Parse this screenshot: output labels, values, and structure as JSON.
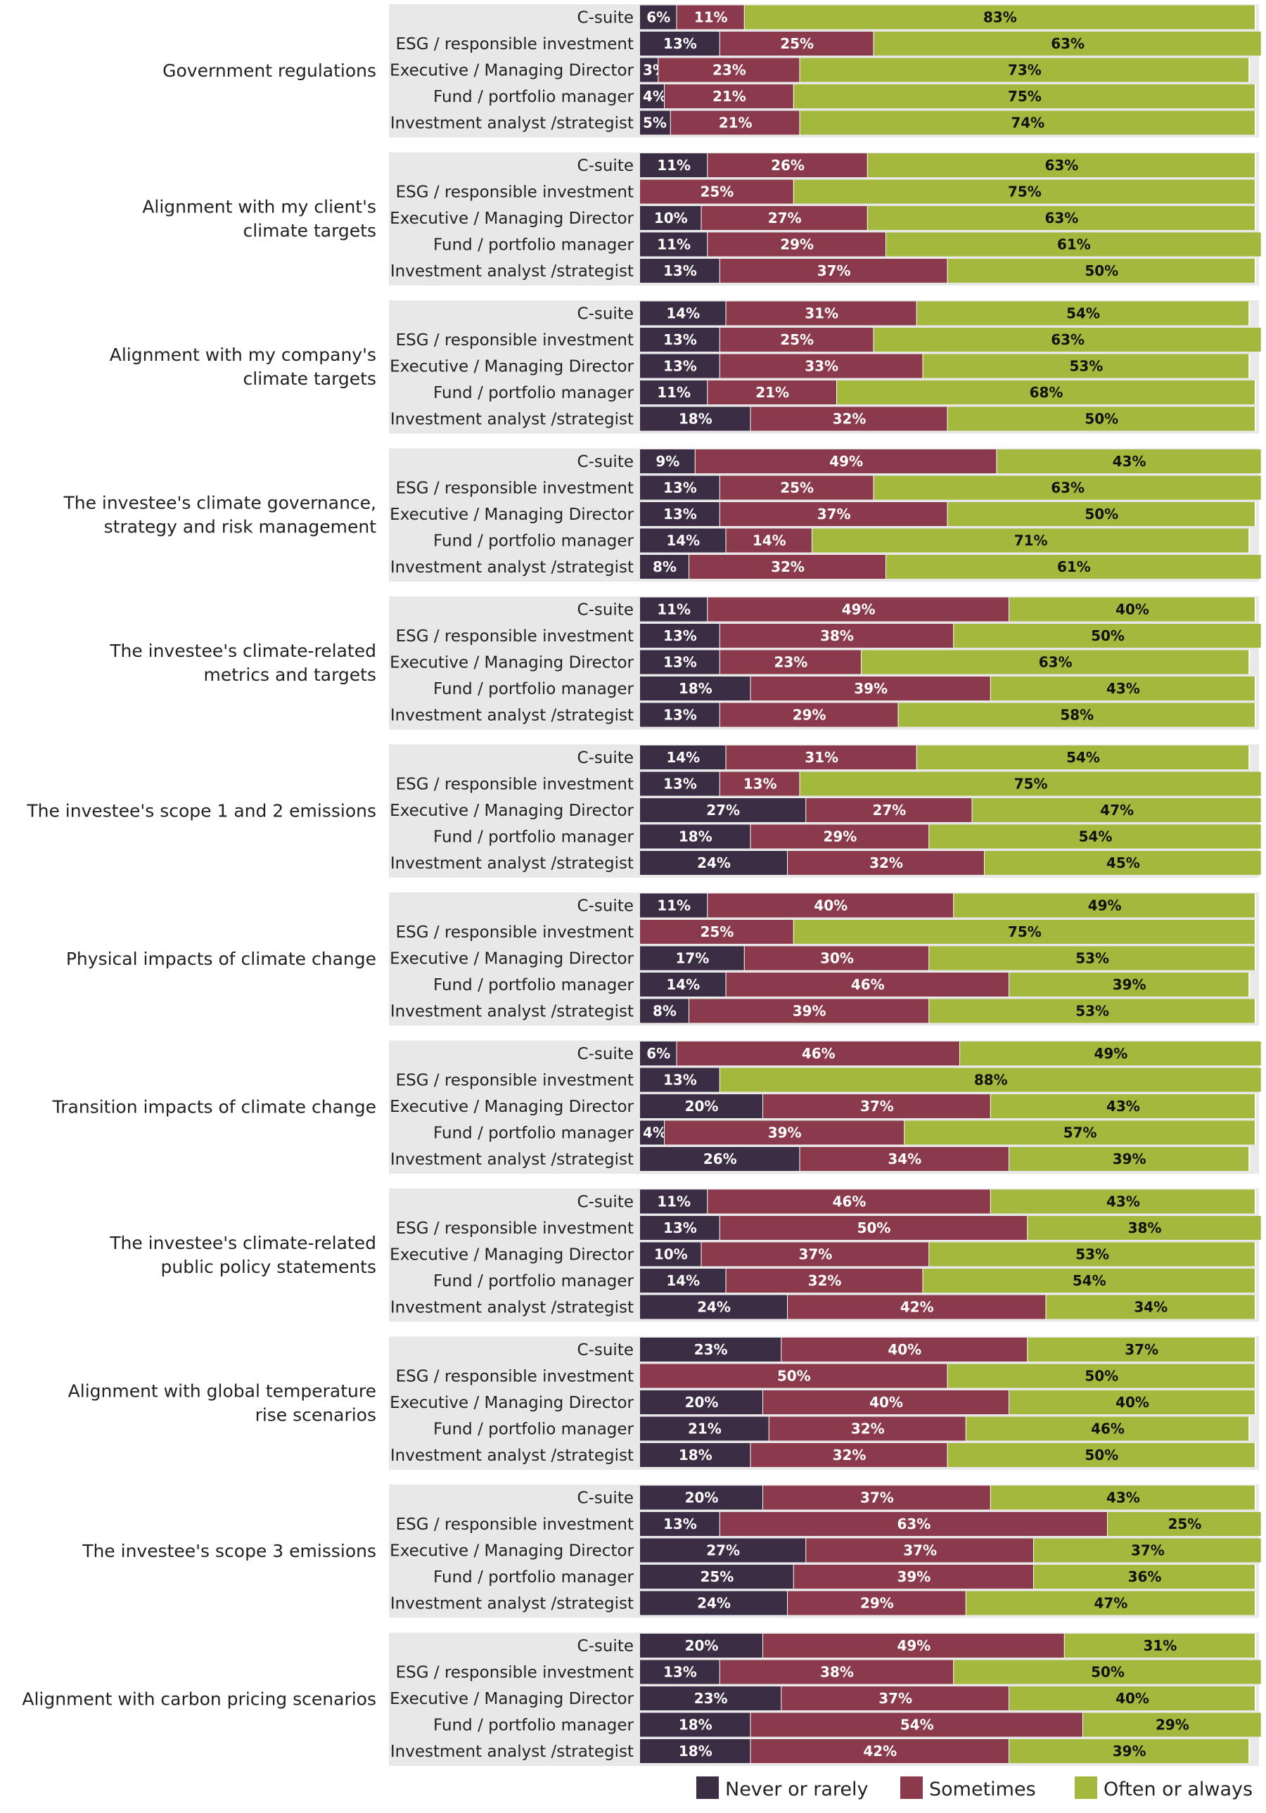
{
  "chart_data": {
    "type": "bar",
    "orientation": "horizontal",
    "stacked": true,
    "percent_scale": [
      0,
      100
    ],
    "legend": {
      "placement": "bottom-right",
      "entries": [
        {
          "name": "Never or rarely",
          "color": "#3b2d44"
        },
        {
          "name": "Sometimes",
          "color": "#8b3a4c"
        },
        {
          "name": "Often or always",
          "color": "#a3b83c"
        }
      ]
    },
    "roles": [
      "C-suite",
      "ESG / responsible investment",
      "Executive / Managing Director",
      "Fund / portfolio manager",
      "Investment analyst /strategist"
    ],
    "groups": [
      {
        "title": [
          "Government regulations"
        ],
        "values": [
          [
            6,
            11,
            83
          ],
          [
            13,
            25,
            63
          ],
          [
            3,
            23,
            73
          ],
          [
            4,
            21,
            75
          ],
          [
            5,
            21,
            74
          ]
        ]
      },
      {
        "title": [
          "Alignment with my client's",
          "climate targets"
        ],
        "values": [
          [
            11,
            26,
            63
          ],
          [
            0,
            25,
            75
          ],
          [
            10,
            27,
            63
          ],
          [
            11,
            29,
            61
          ],
          [
            13,
            37,
            50
          ]
        ]
      },
      {
        "title": [
          "Alignment with my company's",
          "climate targets"
        ],
        "values": [
          [
            14,
            31,
            54
          ],
          [
            13,
            25,
            63
          ],
          [
            13,
            33,
            53
          ],
          [
            11,
            21,
            68
          ],
          [
            18,
            32,
            50
          ]
        ]
      },
      {
        "title": [
          "The investee's climate governance,",
          "strategy and risk management"
        ],
        "values": [
          [
            9,
            49,
            43
          ],
          [
            13,
            25,
            63
          ],
          [
            13,
            37,
            50
          ],
          [
            14,
            14,
            71
          ],
          [
            8,
            32,
            61
          ]
        ]
      },
      {
        "title": [
          "The investee's climate-related",
          "metrics and targets"
        ],
        "values": [
          [
            11,
            49,
            40
          ],
          [
            13,
            38,
            50
          ],
          [
            13,
            23,
            63
          ],
          [
            18,
            39,
            43
          ],
          [
            13,
            29,
            58
          ]
        ]
      },
      {
        "title": [
          "The investee's scope 1 and 2 emissions"
        ],
        "values": [
          [
            14,
            31,
            54
          ],
          [
            13,
            13,
            75
          ],
          [
            27,
            27,
            47
          ],
          [
            18,
            29,
            54
          ],
          [
            24,
            32,
            45
          ]
        ]
      },
      {
        "title": [
          "Physical impacts of climate change"
        ],
        "values": [
          [
            11,
            40,
            49
          ],
          [
            0,
            25,
            75
          ],
          [
            17,
            30,
            53
          ],
          [
            14,
            46,
            39
          ],
          [
            8,
            39,
            53
          ]
        ]
      },
      {
        "title": [
          "Transition impacts of climate change"
        ],
        "values": [
          [
            6,
            46,
            49
          ],
          [
            13,
            0,
            88
          ],
          [
            20,
            37,
            43
          ],
          [
            4,
            39,
            57
          ],
          [
            26,
            34,
            39
          ]
        ]
      },
      {
        "title": [
          "The investee's climate-related",
          "public policy statements"
        ],
        "values": [
          [
            11,
            46,
            43
          ],
          [
            13,
            50,
            38
          ],
          [
            10,
            37,
            53
          ],
          [
            14,
            32,
            54
          ],
          [
            24,
            42,
            34
          ]
        ]
      },
      {
        "title": [
          "Alignment with global temperature",
          "rise scenarios"
        ],
        "values": [
          [
            23,
            40,
            37
          ],
          [
            0,
            50,
            50
          ],
          [
            20,
            40,
            40
          ],
          [
            21,
            32,
            46
          ],
          [
            18,
            32,
            50
          ]
        ]
      },
      {
        "title": [
          "The investee's scope 3 emissions"
        ],
        "values": [
          [
            20,
            37,
            43
          ],
          [
            13,
            63,
            25
          ],
          [
            27,
            37,
            37
          ],
          [
            25,
            39,
            36
          ],
          [
            24,
            29,
            47
          ]
        ]
      },
      {
        "title": [
          "Alignment with carbon pricing scenarios"
        ],
        "values": [
          [
            20,
            49,
            31
          ],
          [
            13,
            38,
            50
          ],
          [
            23,
            37,
            40
          ],
          [
            18,
            54,
            29
          ],
          [
            18,
            42,
            39
          ]
        ]
      }
    ]
  }
}
